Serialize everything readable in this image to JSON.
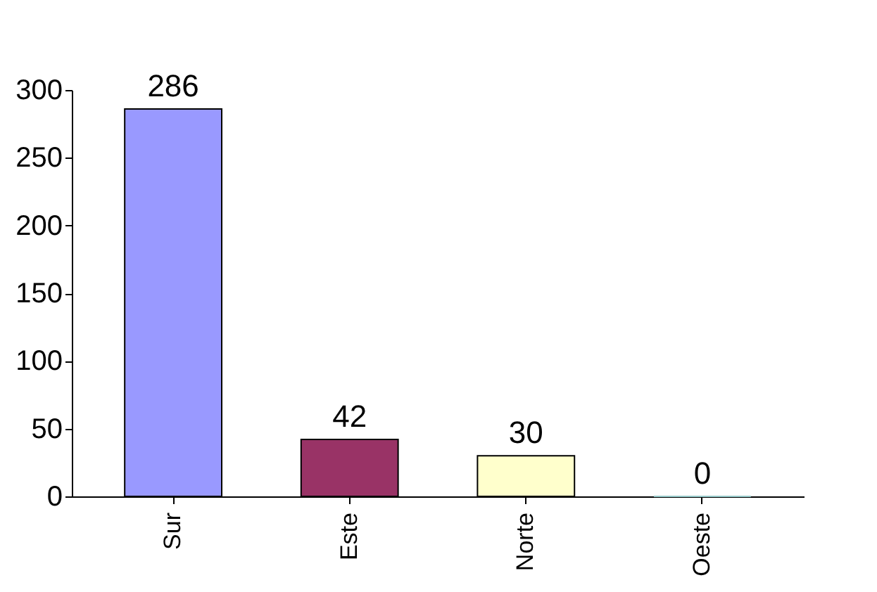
{
  "chart_data": {
    "type": "bar",
    "categories": [
      "Sur",
      "Este",
      "Norte",
      "Oeste"
    ],
    "values": [
      286,
      42,
      30,
      0
    ],
    "colors": [
      "#9999ff",
      "#993366",
      "#ffffcc",
      "#99cccc"
    ],
    "ylim": [
      0,
      300
    ],
    "yticks": [
      0,
      50,
      100,
      150,
      200,
      250,
      300
    ],
    "data_labels": true,
    "grid": false
  }
}
